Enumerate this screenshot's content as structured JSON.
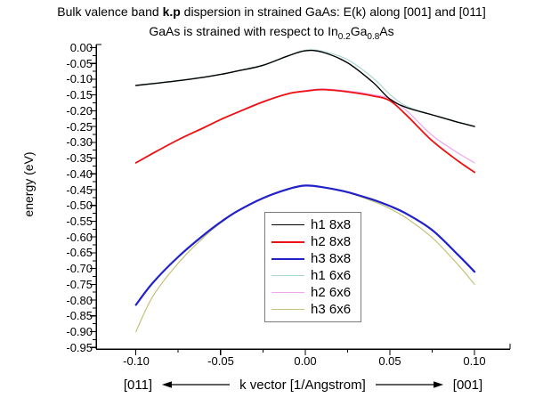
{
  "title": {
    "prefix": "Bulk valence band ",
    "bold": "k.p",
    "suffix": " dispersion in strained GaAs: E(k) along [001] and [011]"
  },
  "subtitle": {
    "part1": "GaAs is strained with respect to In",
    "sub1": "0.2",
    "part2": "Ga",
    "sub2": "0.8",
    "part3": "As"
  },
  "axes": {
    "y_label": "energy (eV)"
  },
  "x_annotation": {
    "left_dir": "[011]",
    "label": "k vector [1/Angstrom]",
    "right_dir": "[001]"
  },
  "colors": {
    "background": "#ffffff",
    "axis": "#000000",
    "legend_border": "#7a7a7a"
  },
  "chart_data": {
    "type": "line",
    "title": "Bulk valence band k.p dispersion in strained GaAs: E(k) along [001] and [011]",
    "subtitle": "GaAs is strained with respect to In0.2Ga0.8As",
    "xlabel": "k vector [1/Angstrom]",
    "ylabel": "energy (eV)",
    "xlim": [
      -0.1235,
      0.121
    ],
    "ylim": [
      -0.955,
      0.0099
    ],
    "grid": false,
    "legend_position": "inside-center",
    "x_ticks": [
      -0.1,
      -0.05,
      0.0,
      0.05,
      0.1
    ],
    "x_tick_labels": [
      "-0.10",
      "-0.05",
      "0.00",
      "0.05",
      "0.10"
    ],
    "y_ticks": [
      0.0,
      -0.05,
      -0.1,
      -0.15,
      -0.2,
      -0.25,
      -0.3,
      -0.35,
      -0.4,
      -0.45,
      -0.5,
      -0.55,
      -0.6,
      -0.65,
      -0.7,
      -0.75,
      -0.8,
      -0.85,
      -0.9,
      -0.95
    ],
    "y_tick_labels": [
      "0.00",
      "-0.05",
      "-0.10",
      "-0.15",
      "-0.20",
      "-0.25",
      "-0.30",
      "-0.35",
      "-0.40",
      "-0.45",
      "-0.50",
      "-0.55",
      "-0.60",
      "-0.65",
      "-0.70",
      "-0.75",
      "-0.80",
      "-0.85",
      "-0.90",
      "-0.95"
    ],
    "series": [
      {
        "name": "h1 8x8",
        "color": "#000000",
        "lw": 1.4,
        "points": [
          [
            -0.1,
            -0.12
          ],
          [
            -0.09,
            -0.114
          ],
          [
            -0.075,
            -0.105
          ],
          [
            -0.06,
            -0.094
          ],
          [
            -0.05,
            -0.085
          ],
          [
            -0.04,
            -0.074
          ],
          [
            -0.025,
            -0.056
          ],
          [
            -0.01,
            -0.026
          ],
          [
            0,
            -0.01
          ],
          [
            0.01,
            -0.014
          ],
          [
            0.025,
            -0.048
          ],
          [
            0.04,
            -0.11
          ],
          [
            0.05,
            -0.163
          ],
          [
            0.06,
            -0.19
          ],
          [
            0.075,
            -0.213
          ],
          [
            0.09,
            -0.236
          ],
          [
            0.1,
            -0.25
          ]
        ]
      },
      {
        "name": "h2 8x8",
        "color": "#ee1111",
        "lw": 1.8,
        "points": [
          [
            -0.1,
            -0.365
          ],
          [
            -0.09,
            -0.335
          ],
          [
            -0.075,
            -0.292
          ],
          [
            -0.06,
            -0.254
          ],
          [
            -0.05,
            -0.228
          ],
          [
            -0.04,
            -0.205
          ],
          [
            -0.025,
            -0.172
          ],
          [
            -0.01,
            -0.146
          ],
          [
            0,
            -0.138
          ],
          [
            0.01,
            -0.133
          ],
          [
            0.025,
            -0.14
          ],
          [
            0.04,
            -0.153
          ],
          [
            0.05,
            -0.168
          ],
          [
            0.06,
            -0.215
          ],
          [
            0.075,
            -0.295
          ],
          [
            0.09,
            -0.358
          ],
          [
            0.1,
            -0.395
          ]
        ]
      },
      {
        "name": "h3 8x8",
        "color": "#2121c8",
        "lw": 2.2,
        "points": [
          [
            -0.1,
            -0.815
          ],
          [
            -0.09,
            -0.745
          ],
          [
            -0.075,
            -0.663
          ],
          [
            -0.06,
            -0.594
          ],
          [
            -0.05,
            -0.553
          ],
          [
            -0.04,
            -0.518
          ],
          [
            -0.025,
            -0.477
          ],
          [
            -0.01,
            -0.448
          ],
          [
            0,
            -0.437
          ],
          [
            0.01,
            -0.442
          ],
          [
            0.025,
            -0.458
          ],
          [
            0.04,
            -0.482
          ],
          [
            0.05,
            -0.502
          ],
          [
            0.06,
            -0.527
          ],
          [
            0.075,
            -0.578
          ],
          [
            0.09,
            -0.655
          ],
          [
            0.1,
            -0.71
          ]
        ]
      },
      {
        "name": "h1 6x6",
        "color": "#a9d6d2",
        "lw": 1.2,
        "points": [
          [
            -0.1,
            -0.119
          ],
          [
            -0.09,
            -0.113
          ],
          [
            -0.075,
            -0.104
          ],
          [
            -0.06,
            -0.093
          ],
          [
            -0.05,
            -0.084
          ],
          [
            -0.04,
            -0.073
          ],
          [
            -0.025,
            -0.055
          ],
          [
            -0.01,
            -0.025
          ],
          [
            0,
            -0.008
          ],
          [
            0.01,
            -0.011
          ],
          [
            0.025,
            -0.038
          ],
          [
            0.04,
            -0.096
          ],
          [
            0.05,
            -0.148
          ],
          [
            0.06,
            -0.186
          ],
          [
            0.075,
            -0.212
          ],
          [
            0.09,
            -0.235
          ],
          [
            0.1,
            -0.249
          ]
        ]
      },
      {
        "name": "h2 6x6",
        "color": "#f0a6ee",
        "lw": 1.2,
        "points": [
          [
            -0.1,
            -0.364
          ],
          [
            -0.09,
            -0.334
          ],
          [
            -0.075,
            -0.291
          ],
          [
            -0.06,
            -0.253
          ],
          [
            -0.05,
            -0.227
          ],
          [
            -0.04,
            -0.204
          ],
          [
            -0.025,
            -0.171
          ],
          [
            -0.01,
            -0.145
          ],
          [
            0,
            -0.136
          ],
          [
            0.01,
            -0.131
          ],
          [
            0.025,
            -0.137
          ],
          [
            0.04,
            -0.149
          ],
          [
            0.05,
            -0.162
          ],
          [
            0.06,
            -0.2
          ],
          [
            0.075,
            -0.278
          ],
          [
            0.09,
            -0.333
          ],
          [
            0.1,
            -0.365
          ]
        ]
      },
      {
        "name": "h3 6x6",
        "color": "#c2c27a",
        "lw": 1.2,
        "points": [
          [
            -0.1,
            -0.9
          ],
          [
            -0.09,
            -0.788
          ],
          [
            -0.075,
            -0.683
          ],
          [
            -0.06,
            -0.601
          ],
          [
            -0.05,
            -0.556
          ],
          [
            -0.04,
            -0.519
          ],
          [
            -0.025,
            -0.477
          ],
          [
            -0.01,
            -0.448
          ],
          [
            0,
            -0.437
          ],
          [
            0.01,
            -0.442
          ],
          [
            0.025,
            -0.459
          ],
          [
            0.04,
            -0.487
          ],
          [
            0.05,
            -0.51
          ],
          [
            0.06,
            -0.541
          ],
          [
            0.075,
            -0.602
          ],
          [
            0.09,
            -0.686
          ],
          [
            0.1,
            -0.75
          ]
        ]
      }
    ]
  }
}
